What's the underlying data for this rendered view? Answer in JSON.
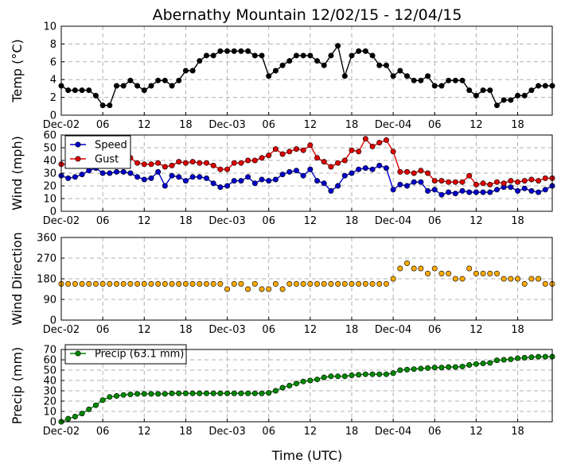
{
  "figure": {
    "title": "Abernathy Mountain 12/02/15 - 12/04/15",
    "xlabel": "Time (UTC)",
    "x_tick_labels": [
      "Dec-02",
      "06",
      "12",
      "18",
      "Dec-03",
      "06",
      "12",
      "18",
      "Dec-04",
      "06",
      "12",
      "18"
    ],
    "x_tick_hours": [
      0,
      6,
      12,
      18,
      24,
      30,
      36,
      42,
      48,
      54,
      60,
      66
    ]
  },
  "chart_data": [
    {
      "type": "line",
      "ylabel": "Temp (°C)",
      "ylim": [
        0,
        10
      ],
      "yticks": [
        0,
        2,
        4,
        6,
        8,
        10
      ],
      "grid": true,
      "series": [
        {
          "color": "#000000",
          "x": [
            0,
            1,
            2,
            3,
            4,
            5,
            6,
            7,
            8,
            9,
            10,
            11,
            12,
            13,
            14,
            15,
            16,
            17,
            18,
            19,
            20,
            21,
            22,
            23,
            24,
            25,
            26,
            27,
            28,
            29,
            30,
            31,
            32,
            33,
            34,
            35,
            36,
            37,
            38,
            39,
            40,
            41,
            42,
            43,
            44,
            45,
            46,
            47,
            48,
            49,
            50,
            51,
            52,
            53,
            54,
            55,
            56,
            57,
            58,
            59,
            60,
            61,
            62,
            63,
            64,
            65,
            66,
            67,
            68,
            69,
            70,
            71
          ],
          "values": [
            3.3,
            2.8,
            2.8,
            2.8,
            2.8,
            2.2,
            1.1,
            1.1,
            3.3,
            3.3,
            3.9,
            3.3,
            2.8,
            3.3,
            3.9,
            3.9,
            3.3,
            3.9,
            5.0,
            5.0,
            6.1,
            6.7,
            6.7,
            7.2,
            7.2,
            7.2,
            7.2,
            7.2,
            6.7,
            6.7,
            4.4,
            5.0,
            5.6,
            6.1,
            6.7,
            6.7,
            6.7,
            6.1,
            5.6,
            6.7,
            7.8,
            4.4,
            6.7,
            7.2,
            7.2,
            6.7,
            5.6,
            5.6,
            4.4,
            5.0,
            4.4,
            3.9,
            3.9,
            4.4,
            3.3,
            3.3,
            3.9,
            3.9,
            3.9,
            2.8,
            2.2,
            2.8,
            2.8,
            1.1,
            1.7,
            1.7,
            2.2,
            2.2,
            2.8,
            3.3,
            3.3,
            3.3
          ]
        }
      ]
    },
    {
      "type": "line",
      "ylabel": "Wind (mph)",
      "ylim": [
        0,
        60
      ],
      "yticks": [
        0,
        10,
        20,
        30,
        40,
        50,
        60
      ],
      "grid": true,
      "legend": "top-left",
      "series": [
        {
          "name": "Speed",
          "color": "#0000cc",
          "x": [
            0,
            1,
            2,
            3,
            4,
            5,
            6,
            7,
            8,
            9,
            10,
            11,
            12,
            13,
            14,
            15,
            16,
            17,
            18,
            19,
            20,
            21,
            22,
            23,
            24,
            25,
            26,
            27,
            28,
            29,
            30,
            31,
            32,
            33,
            34,
            35,
            36,
            37,
            38,
            39,
            40,
            41,
            42,
            43,
            44,
            45,
            46,
            47,
            48,
            49,
            50,
            51,
            52,
            53,
            54,
            55,
            56,
            57,
            58,
            59,
            60,
            61,
            62,
            63,
            64,
            65,
            66,
            67,
            68,
            69,
            70,
            71
          ],
          "values": [
            28,
            26,
            27,
            29,
            32,
            34,
            30,
            30,
            31,
            31,
            30,
            27,
            25,
            26,
            31,
            20,
            28,
            27,
            24,
            27,
            27,
            26,
            22,
            19,
            20,
            24,
            24,
            27,
            22,
            25,
            24,
            25,
            29,
            31,
            32,
            28,
            33,
            24,
            22,
            16,
            20,
            28,
            30,
            33,
            34,
            33,
            36,
            34,
            17,
            21,
            20,
            23,
            23,
            16,
            17,
            13,
            15,
            14,
            16,
            15,
            15,
            15,
            15,
            17,
            19,
            19,
            16,
            18,
            16,
            15,
            17,
            20
          ]
        },
        {
          "name": "Gust",
          "color": "#dd0000",
          "x": [
            0,
            1,
            2,
            3,
            4,
            5,
            6,
            7,
            8,
            9,
            10,
            11,
            12,
            13,
            14,
            15,
            16,
            17,
            18,
            19,
            20,
            21,
            22,
            23,
            24,
            25,
            26,
            27,
            28,
            29,
            30,
            31,
            32,
            33,
            34,
            35,
            36,
            37,
            38,
            39,
            40,
            41,
            42,
            43,
            44,
            45,
            46,
            47,
            48,
            49,
            50,
            51,
            52,
            53,
            54,
            55,
            56,
            57,
            58,
            59,
            60,
            61,
            62,
            63,
            64,
            65,
            66,
            67,
            68,
            69,
            70,
            71
          ],
          "values": [
            37,
            37,
            38,
            40,
            41,
            41,
            44,
            41,
            42,
            43,
            42,
            38,
            37,
            37,
            38,
            35,
            36,
            39,
            38,
            39,
            38,
            38,
            36,
            33,
            33,
            38,
            38,
            40,
            40,
            42,
            44,
            49,
            45,
            47,
            49,
            48,
            52,
            42,
            39,
            35,
            38,
            40,
            48,
            47,
            57,
            51,
            54,
            56,
            47,
            31,
            31,
            30,
            32,
            30,
            24,
            24,
            23,
            23,
            23,
            28,
            21,
            22,
            21,
            23,
            22,
            24,
            23,
            24,
            25,
            24,
            26,
            26
          ]
        }
      ]
    },
    {
      "type": "scatter",
      "ylabel": "Wind Direction",
      "ylim": [
        0,
        360
      ],
      "yticks": [
        0,
        90,
        180,
        270,
        360
      ],
      "grid": true,
      "series": [
        {
          "color": "#ffaa00",
          "x": [
            0,
            1,
            2,
            3,
            4,
            5,
            6,
            7,
            8,
            9,
            10,
            11,
            12,
            13,
            14,
            15,
            16,
            17,
            18,
            19,
            20,
            21,
            22,
            23,
            24,
            25,
            26,
            27,
            28,
            29,
            30,
            31,
            32,
            33,
            34,
            35,
            36,
            37,
            38,
            39,
            40,
            41,
            42,
            43,
            44,
            45,
            46,
            47,
            48,
            49,
            50,
            51,
            52,
            53,
            54,
            55,
            56,
            57,
            58,
            59,
            60,
            61,
            62,
            63,
            64,
            65,
            66,
            67,
            68,
            69,
            70,
            71
          ],
          "values": [
            158,
            158,
            158,
            158,
            158,
            158,
            158,
            158,
            158,
            158,
            158,
            158,
            158,
            158,
            158,
            158,
            158,
            158,
            158,
            158,
            158,
            158,
            158,
            158,
            135,
            158,
            158,
            135,
            158,
            135,
            135,
            158,
            135,
            158,
            158,
            158,
            158,
            158,
            158,
            158,
            158,
            158,
            158,
            158,
            158,
            158,
            158,
            158,
            180,
            225,
            248,
            225,
            225,
            203,
            225,
            203,
            203,
            180,
            180,
            225,
            203,
            203,
            203,
            203,
            180,
            180,
            180,
            158,
            180,
            180,
            158,
            158
          ]
        }
      ]
    },
    {
      "type": "line",
      "ylabel": "Precip (mm)",
      "ylim": [
        0,
        70
      ],
      "yticks": [
        0,
        10,
        20,
        30,
        40,
        50,
        60,
        70
      ],
      "grid": true,
      "legend": "top-left",
      "series": [
        {
          "name": "Precip (63.1 mm)",
          "color": "#008800",
          "x": [
            0,
            1,
            2,
            3,
            4,
            5,
            6,
            7,
            8,
            9,
            10,
            11,
            12,
            13,
            14,
            15,
            16,
            17,
            18,
            19,
            20,
            21,
            22,
            23,
            24,
            25,
            26,
            27,
            28,
            29,
            30,
            31,
            32,
            33,
            34,
            35,
            36,
            37,
            38,
            39,
            40,
            41,
            42,
            43,
            44,
            45,
            46,
            47,
            48,
            49,
            50,
            51,
            52,
            53,
            54,
            55,
            56,
            57,
            58,
            59,
            60,
            61,
            62,
            63,
            64,
            65,
            66,
            67,
            68,
            69,
            70,
            71
          ],
          "values": [
            0,
            3,
            5,
            8,
            12,
            16,
            21,
            24,
            25,
            26,
            26.5,
            27,
            27,
            27,
            27,
            27,
            27.5,
            27.5,
            27.5,
            27.5,
            27.5,
            27.5,
            27.5,
            27.5,
            27.5,
            27.5,
            27.5,
            27.5,
            27.5,
            27.5,
            28,
            30,
            33,
            35,
            37,
            39,
            40,
            41,
            43,
            44,
            44,
            44,
            45,
            45.5,
            46,
            46,
            46,
            46,
            47,
            50,
            50.5,
            51,
            51.5,
            52,
            52.5,
            52.5,
            53,
            53,
            53.5,
            55,
            56,
            56.5,
            57,
            59.5,
            60,
            60.5,
            61.5,
            62,
            62.5,
            63,
            63,
            63.1
          ]
        }
      ]
    }
  ]
}
